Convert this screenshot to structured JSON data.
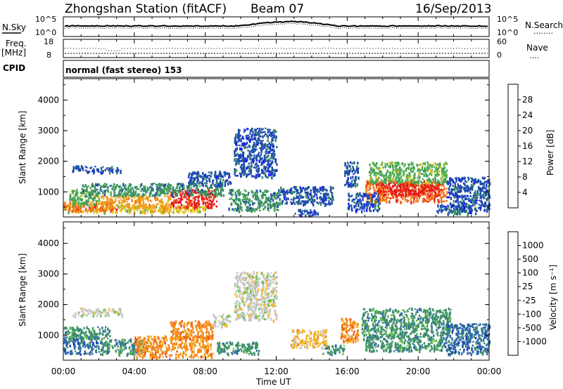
{
  "header": {
    "station": "Zhongshan Station (fitACF)",
    "beam": "Beam 07",
    "date": "16/Sep/2013"
  },
  "nsky_panel": {
    "label": "N.Sky",
    "left_ticks": [
      "10^5",
      "10^0"
    ],
    "right_ticks": [
      "10^5",
      "10^0"
    ],
    "right_label": "N.Search",
    "right_label_dots": "........"
  },
  "freq_panel": {
    "label": "Freq.",
    "unit": "[MHz]",
    "left_ticks": [
      "18",
      "8"
    ],
    "right_ticks": [
      "60",
      "0"
    ],
    "right_label": "Nave",
    "right_label_dots": "...."
  },
  "cpid": {
    "label": "CPID",
    "value": "normal (fast stereo) 153"
  },
  "colors": {
    "power": [
      "#1a1aff",
      "#1f4fa8",
      "#3b8f63",
      "#4fae4f",
      "#e6c21a",
      "#f29a1a",
      "#f26b1a",
      "#e61a1a"
    ],
    "velocity": [
      "#1a3fb3",
      "#2f6aaa",
      "#3f8f6a",
      "#62c24a",
      "#c8c8c8",
      "#f2b82a",
      "#f28a1a",
      "#f0521a",
      "#e61a1a"
    ]
  },
  "chart_data": [
    {
      "type": "heatmap",
      "name": "power",
      "ylabel": "Slant Range [km]",
      "xlabel": "",
      "yticks": [
        "1000",
        "2000",
        "3000",
        "4000"
      ],
      "ylim": [
        180,
        4700
      ],
      "xlim": [
        0,
        24
      ],
      "colorbar": {
        "label": "Power [dB]",
        "ticks": [
          "4",
          "8",
          "12",
          "16",
          "20",
          "24",
          "28"
        ]
      },
      "patches": [
        {
          "t0": 0.5,
          "t1": 1.1,
          "r0": 1700,
          "r1": 1900,
          "level": 1
        },
        {
          "t0": 1.2,
          "t1": 3.2,
          "r0": 1650,
          "r1": 1850,
          "level": 1
        },
        {
          "t0": 0.0,
          "t1": 8.0,
          "r0": 350,
          "r1": 600,
          "level": 4
        },
        {
          "t0": 0.0,
          "t1": 3.0,
          "r0": 400,
          "r1": 700,
          "level": 6
        },
        {
          "t0": 0.3,
          "t1": 2.0,
          "r0": 600,
          "r1": 1100,
          "level": 3
        },
        {
          "t0": 2.0,
          "t1": 6.0,
          "r0": 500,
          "r1": 900,
          "level": 5
        },
        {
          "t0": 6.0,
          "t1": 8.6,
          "r0": 500,
          "r1": 1100,
          "level": 7
        },
        {
          "t0": 1.0,
          "t1": 9.0,
          "r0": 900,
          "r1": 1300,
          "level": 2
        },
        {
          "t0": 7.0,
          "t1": 9.4,
          "r0": 1200,
          "r1": 1700,
          "level": 1
        },
        {
          "t0": 9.6,
          "t1": 12.0,
          "r0": 1500,
          "r1": 3100,
          "level": 1
        },
        {
          "t0": 9.3,
          "t1": 12.2,
          "r0": 400,
          "r1": 1100,
          "level": 2
        },
        {
          "t0": 12.2,
          "t1": 15.2,
          "r0": 600,
          "r1": 1200,
          "level": 1
        },
        {
          "t0": 13.0,
          "t1": 14.4,
          "r0": 250,
          "r1": 450,
          "level": 1
        },
        {
          "t0": 15.8,
          "t1": 16.6,
          "r0": 1200,
          "r1": 2000,
          "level": 1
        },
        {
          "t0": 17.0,
          "t1": 21.6,
          "r0": 700,
          "r1": 1400,
          "level": 6
        },
        {
          "t0": 17.2,
          "t1": 21.6,
          "r0": 1300,
          "r1": 2000,
          "level": 3
        },
        {
          "t0": 17.6,
          "t1": 21.2,
          "r0": 900,
          "r1": 1300,
          "level": 7
        },
        {
          "t0": 21.6,
          "t1": 24.0,
          "r0": 400,
          "r1": 1500,
          "level": 1
        },
        {
          "t0": 16.0,
          "t1": 17.8,
          "r0": 400,
          "r1": 1000,
          "level": 1
        },
        {
          "t0": 21.0,
          "t1": 23.2,
          "r0": 300,
          "r1": 600,
          "level": 1
        }
      ]
    },
    {
      "type": "heatmap",
      "name": "velocity",
      "ylabel": "Slant Range [km]",
      "xlabel": "Time UT",
      "yticks": [
        "1000",
        "2000",
        "3000",
        "4000"
      ],
      "ylim": [
        180,
        4700
      ],
      "xlim": [
        0,
        24
      ],
      "xticks": [
        "00:00",
        "04:00",
        "08:00",
        "12:00",
        "16:00",
        "20:00",
        "00:00"
      ],
      "colorbar": {
        "label": "Velocity [m s⁻¹]",
        "ticks": [
          "1000",
          "500",
          "100",
          "25",
          "-25",
          "-100",
          "-500",
          "-1000"
        ]
      },
      "patches": [
        {
          "t0": 0.5,
          "t1": 3.3,
          "r0": 1650,
          "r1": 1900,
          "level": 4
        },
        {
          "t0": 0.0,
          "t1": 2.0,
          "r0": 400,
          "r1": 1000,
          "level": 1
        },
        {
          "t0": 0.0,
          "t1": 2.6,
          "r0": 900,
          "r1": 1300,
          "level": 2
        },
        {
          "t0": 2.0,
          "t1": 4.5,
          "r0": 400,
          "r1": 900,
          "level": 2
        },
        {
          "t0": 4.0,
          "t1": 8.4,
          "r0": 300,
          "r1": 1000,
          "level": 6
        },
        {
          "t0": 6.0,
          "t1": 8.4,
          "r0": 900,
          "r1": 1500,
          "level": 6
        },
        {
          "t0": 8.4,
          "t1": 9.4,
          "r0": 1300,
          "r1": 1700,
          "level": 4
        },
        {
          "t0": 8.6,
          "t1": 11.0,
          "r0": 400,
          "r1": 800,
          "level": 2
        },
        {
          "t0": 9.6,
          "t1": 12.0,
          "r0": 1500,
          "r1": 3100,
          "level": 4
        },
        {
          "t0": 12.8,
          "t1": 14.8,
          "r0": 600,
          "r1": 1200,
          "level": 5
        },
        {
          "t0": 15.6,
          "t1": 16.6,
          "r0": 800,
          "r1": 1600,
          "level": 6
        },
        {
          "t0": 14.6,
          "t1": 15.8,
          "r0": 400,
          "r1": 700,
          "level": 2
        },
        {
          "t0": 16.8,
          "t1": 21.8,
          "r0": 900,
          "r1": 1900,
          "level": 2
        },
        {
          "t0": 17.0,
          "t1": 21.6,
          "r0": 500,
          "r1": 900,
          "level": 2
        },
        {
          "t0": 21.5,
          "t1": 24.0,
          "r0": 400,
          "r1": 1400,
          "level": 1
        }
      ]
    }
  ]
}
